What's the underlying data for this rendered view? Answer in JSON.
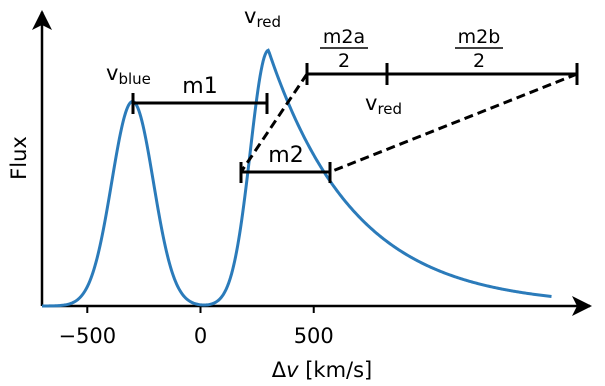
{
  "chart_data": {
    "type": "line",
    "xlabel_prefix": "Δ",
    "xlabel_var": "v",
    "xlabel_unit": " [km/s]",
    "ylabel": "Flux",
    "x_ticks": [
      "−500",
      "0",
      "500"
    ],
    "x_tick_values": [
      -500,
      0,
      500
    ],
    "xlim": [
      -700,
      1720
    ],
    "ylim": [
      0,
      1.15
    ],
    "series": [
      {
        "color": "#2b7bba",
        "components": [
          {
            "shape": "gaussian",
            "center": -300,
            "sigma": 92,
            "amplitude": 0.8
          },
          {
            "shape": "skewed",
            "center": 300,
            "sigma_left": 80,
            "decay_right": 380,
            "amplitude": 1.0
          }
        ],
        "x_range": [
          -700,
          1550
        ]
      }
    ],
    "annotations": {
      "v_blue": {
        "base": "v",
        "sub": "blue"
      },
      "v_red_top": {
        "base": "v",
        "sub": "red"
      },
      "v_red_mid": {
        "base": "v",
        "sub": "red"
      },
      "m1": {
        "label": "m1",
        "from": -300,
        "to": 300,
        "y": 0.77
      },
      "m2": {
        "label": "m2",
        "from": 180,
        "to": 590,
        "y": 0.51
      },
      "m2a": {
        "numerator": "m2a",
        "denominator": "2"
      },
      "m2b": {
        "numerator": "m2b",
        "denominator": "2"
      }
    }
  }
}
